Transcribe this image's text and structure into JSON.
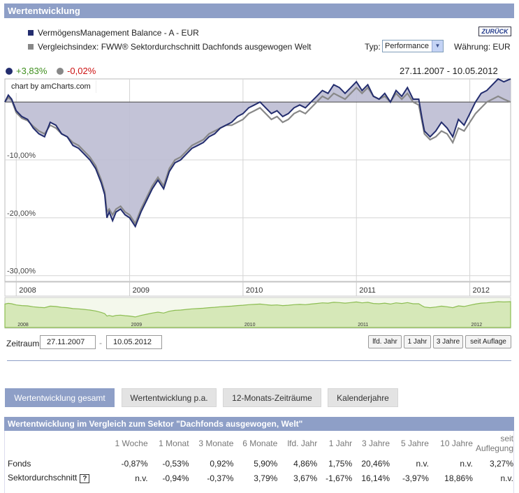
{
  "header": {
    "title": "Wertentwicklung"
  },
  "legend": {
    "fund": {
      "label": "VermögensManagement Balance - A - EUR",
      "color": "#232d6e"
    },
    "index": {
      "label": "Vergleichsindex: FWW® Sektordurchschnitt Dachfonds ausgewogen Welt",
      "color": "#888888"
    }
  },
  "controls": {
    "back_label": "ZURÜCK",
    "typ_label": "Typ:",
    "typ_value": "Performance",
    "currency_label": "Währung: EUR"
  },
  "summary": {
    "fund_perf": "+3,83%",
    "index_perf": "-0,02%",
    "date_range": "27.11.2007 - 10.05.2012",
    "positive_color": "#3f8f1e",
    "negative_color": "#cc1111"
  },
  "chart_data": {
    "type": "line",
    "credit": "chart by amCharts.com",
    "x_ticks": [
      "2008",
      "2009",
      "2010",
      "2011",
      "2012"
    ],
    "y_ticks": [
      "-10,00%",
      "-20,00%",
      "-30,00%"
    ],
    "ylim": [
      -31,
      4
    ],
    "xlim": [
      2007.9,
      2012.36
    ],
    "series": [
      {
        "name": "VermögensManagement Balance - A - EUR",
        "color": "#232d6e",
        "x": [
          2007.9,
          2007.93,
          2007.96,
          2008.0,
          2008.05,
          2008.1,
          2008.15,
          2008.2,
          2008.25,
          2008.3,
          2008.35,
          2008.4,
          2008.45,
          2008.5,
          2008.55,
          2008.6,
          2008.65,
          2008.7,
          2008.75,
          2008.78,
          2008.8,
          2008.82,
          2008.85,
          2008.88,
          2008.92,
          2008.96,
          2009.0,
          2009.05,
          2009.1,
          2009.15,
          2009.2,
          2009.25,
          2009.3,
          2009.35,
          2009.4,
          2009.45,
          2009.5,
          2009.55,
          2009.6,
          2009.65,
          2009.7,
          2009.75,
          2009.8,
          2009.85,
          2009.9,
          2009.95,
          2010.0,
          2010.05,
          2010.1,
          2010.15,
          2010.2,
          2010.25,
          2010.3,
          2010.35,
          2010.4,
          2010.45,
          2010.5,
          2010.55,
          2010.6,
          2010.65,
          2010.7,
          2010.75,
          2010.8,
          2010.85,
          2010.9,
          2010.95,
          2011.0,
          2011.05,
          2011.1,
          2011.15,
          2011.2,
          2011.25,
          2011.3,
          2011.35,
          2011.4,
          2011.45,
          2011.5,
          2011.55,
          2011.58,
          2011.6,
          2011.65,
          2011.7,
          2011.75,
          2011.8,
          2011.85,
          2011.9,
          2011.95,
          2012.0,
          2012.05,
          2012.1,
          2012.15,
          2012.2,
          2012.25,
          2012.3,
          2012.36
        ],
        "values": [
          0,
          1.2,
          0.5,
          -1.5,
          -2.5,
          -3,
          -4.5,
          -5.5,
          -6,
          -3.5,
          -4,
          -5.5,
          -6,
          -7.5,
          -8,
          -9,
          -10,
          -11.5,
          -14,
          -16,
          -20,
          -19,
          -20.5,
          -19,
          -18.5,
          -19.5,
          -20,
          -21.5,
          -19,
          -17,
          -15,
          -13.5,
          -15,
          -12,
          -10.5,
          -10,
          -9,
          -8,
          -7.5,
          -7,
          -6,
          -5.5,
          -4.5,
          -4,
          -3.5,
          -2.5,
          -2,
          -1,
          -0.5,
          0,
          -1,
          -2,
          -1.5,
          -2.5,
          -2,
          -1,
          -0.5,
          -1,
          0,
          1,
          2,
          1.5,
          3,
          2.5,
          1.5,
          2.5,
          3.5,
          2,
          3,
          1,
          0.5,
          1.5,
          0,
          2,
          1,
          2.5,
          0.5,
          0.5,
          -3,
          -5,
          -6,
          -5,
          -3.5,
          -4.5,
          -6,
          -3,
          -4,
          -2,
          0,
          1.5,
          2,
          3,
          4,
          3.5,
          4
        ]
      },
      {
        "name": "Vergleichsindex: FWW® Sektordurchschnitt Dachfonds ausgewogen Welt",
        "color": "#888888",
        "x": [
          2007.9,
          2007.93,
          2007.96,
          2008.0,
          2008.05,
          2008.1,
          2008.15,
          2008.2,
          2008.25,
          2008.3,
          2008.35,
          2008.4,
          2008.45,
          2008.5,
          2008.55,
          2008.6,
          2008.65,
          2008.7,
          2008.75,
          2008.78,
          2008.8,
          2008.82,
          2008.85,
          2008.88,
          2008.92,
          2008.96,
          2009.0,
          2009.05,
          2009.1,
          2009.15,
          2009.2,
          2009.25,
          2009.3,
          2009.35,
          2009.4,
          2009.45,
          2009.5,
          2009.55,
          2009.6,
          2009.65,
          2009.7,
          2009.75,
          2009.8,
          2009.85,
          2009.9,
          2009.95,
          2010.0,
          2010.05,
          2010.1,
          2010.15,
          2010.2,
          2010.25,
          2010.3,
          2010.35,
          2010.4,
          2010.45,
          2010.5,
          2010.55,
          2010.6,
          2010.65,
          2010.7,
          2010.75,
          2010.8,
          2010.85,
          2010.9,
          2010.95,
          2011.0,
          2011.05,
          2011.1,
          2011.15,
          2011.2,
          2011.25,
          2011.3,
          2011.35,
          2011.4,
          2011.45,
          2011.5,
          2011.55,
          2011.58,
          2011.6,
          2011.65,
          2011.7,
          2011.75,
          2011.8,
          2011.85,
          2011.9,
          2011.95,
          2012.0,
          2012.05,
          2012.1,
          2012.15,
          2012.2,
          2012.25,
          2012.3,
          2012.36
        ],
        "values": [
          0,
          0.8,
          0.3,
          -1.8,
          -2.8,
          -3.2,
          -4.2,
          -5,
          -5.5,
          -4,
          -4.5,
          -5.5,
          -6,
          -7,
          -7.5,
          -8.5,
          -9.5,
          -11,
          -13.5,
          -15.5,
          -19,
          -18.5,
          -19.5,
          -18.5,
          -18,
          -19,
          -19.5,
          -21,
          -18.5,
          -16.5,
          -14.5,
          -13,
          -14.5,
          -11.5,
          -10,
          -9.5,
          -8.5,
          -7.5,
          -7,
          -6.5,
          -5.5,
          -5,
          -4.5,
          -4,
          -4,
          -3.5,
          -3,
          -2,
          -1.5,
          -1,
          -2,
          -3,
          -2.5,
          -3.5,
          -3,
          -2,
          -1.5,
          -2,
          -1,
          0,
          1,
          0.5,
          1.5,
          1,
          0.5,
          1.5,
          2.5,
          1.5,
          2.5,
          1,
          0.5,
          1,
          0,
          1.5,
          0.5,
          1.5,
          0,
          -0.5,
          -3.5,
          -5.5,
          -6.5,
          -6,
          -5,
          -5.5,
          -7,
          -4.5,
          -5,
          -3.5,
          -2,
          -1,
          0,
          0.5,
          1,
          0.5,
          0
        ]
      }
    ]
  },
  "period": {
    "label": "Zeitraum:",
    "from": "27.11.2007",
    "separator": "-",
    "to": "10.05.2012",
    "buttons": [
      "lfd. Jahr",
      "1 Jahr",
      "3 Jahre",
      "seit Auflage"
    ]
  },
  "tabs": [
    "Wertentwicklung gesamt",
    "Wertentwicklung p.a.",
    "12-Monats-Zeiträume",
    "Kalenderjahre"
  ],
  "comparison": {
    "title": "Wertentwicklung im Vergleich zum Sektor \"Dachfonds ausgewogen, Welt\"",
    "columns": [
      "1 Woche",
      "1 Monat",
      "3 Monate",
      "6 Monate",
      "lfd. Jahr",
      "1 Jahr",
      "3 Jahre",
      "5 Jahre",
      "10 Jahre"
    ],
    "last_column": [
      "seit",
      "Auflegung"
    ],
    "rows": [
      {
        "name": "Fonds",
        "values": [
          "-0,87%",
          "-0,53%",
          "0,92%",
          "5,90%",
          "4,86%",
          "1,75%",
          "20,46%",
          "n.v.",
          "n.v.",
          "3,27%"
        ]
      },
      {
        "name": "Sektordurchschnitt",
        "help": "?",
        "values": [
          "n.v.",
          "-0,94%",
          "-0,37%",
          "3,79%",
          "3,67%",
          "-1,67%",
          "16,14%",
          "-3,97%",
          "18,86%",
          "n.v."
        ]
      }
    ]
  }
}
